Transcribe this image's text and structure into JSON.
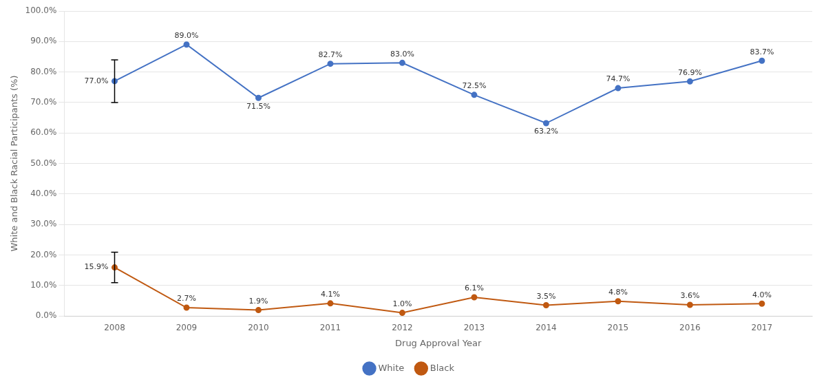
{
  "chart_data": {
    "type": "line",
    "x": [
      2008,
      2009,
      2010,
      2011,
      2012,
      2013,
      2014,
      2015,
      2016,
      2017
    ],
    "xlim": [
      2007.3,
      2017.7
    ],
    "xticks": [
      2008,
      2009,
      2010,
      2011,
      2012,
      2013,
      2014,
      2015,
      2016,
      2017
    ],
    "ylim": [
      0.0,
      100.0
    ],
    "yticks": [
      {
        "value": 0.0,
        "label": "0.0%"
      },
      {
        "value": 10.0,
        "label": "10.0%"
      },
      {
        "value": 20.0,
        "label": "20.0%"
      },
      {
        "value": 30.0,
        "label": "30.0%"
      },
      {
        "value": 40.0,
        "label": "40.0%"
      },
      {
        "value": 50.0,
        "label": "50.0%"
      },
      {
        "value": 60.0,
        "label": "60.0%"
      },
      {
        "value": 70.0,
        "label": "70.0%"
      },
      {
        "value": 80.0,
        "label": "80.0%"
      },
      {
        "value": 90.0,
        "label": "90.0%"
      },
      {
        "value": 100.0,
        "label": "100.0%"
      }
    ],
    "x_label": "Drug Approval Year",
    "y_label": "White and Black Racial Participants (%)",
    "grid": "y",
    "legend": "bottom",
    "data_labels": true,
    "marker": "circle",
    "line_style": "solid",
    "series": [
      {
        "name": "White",
        "color": "#4472C4",
        "values": [
          77.0,
          89.0,
          71.5,
          82.7,
          83.0,
          72.5,
          63.2,
          74.7,
          76.9,
          83.7
        ],
        "value_labels": [
          "77.0%",
          "89.0%",
          "71.5%",
          "82.7%",
          "83.0%",
          "72.5%",
          "63.2%",
          "74.7%",
          "76.9%",
          "83.7%"
        ],
        "errors": [
          7.0,
          null,
          null,
          null,
          null,
          null,
          null,
          null,
          null,
          null
        ]
      },
      {
        "name": "Black",
        "color": "#C05911",
        "values": [
          15.9,
          2.7,
          1.9,
          4.1,
          1.0,
          6.1,
          3.5,
          4.8,
          3.6,
          4.0
        ],
        "value_labels": [
          "15.9%",
          "2.7%",
          "1.9%",
          "4.1%",
          "1.0%",
          "6.1%",
          "3.5%",
          "4.8%",
          "3.6%",
          "4.0%"
        ],
        "errors": [
          5.0,
          null,
          null,
          null,
          null,
          null,
          null,
          null,
          null,
          null
        ]
      }
    ]
  }
}
